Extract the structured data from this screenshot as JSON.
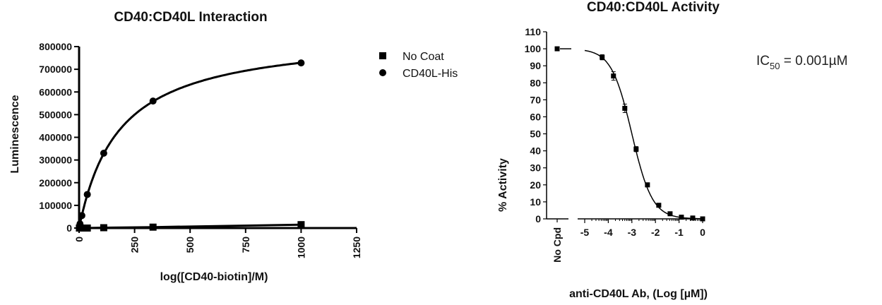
{
  "chart_data": [
    {
      "type": "scatter",
      "title": "CD40:CD40L Interaction",
      "xlabel": "log([CD40-biotin]/M)",
      "ylabel": "Luminescence",
      "xlim": [
        0,
        1250
      ],
      "ylim": [
        0,
        800000
      ],
      "xticks": [
        0,
        250,
        500,
        750,
        1000,
        1250
      ],
      "xtick_labels": [
        "0",
        "250",
        "500",
        "750",
        "1000",
        "1250"
      ],
      "yticks": [
        0,
        100000,
        200000,
        300000,
        400000,
        500000,
        600000,
        700000,
        800000
      ],
      "ytick_labels": [
        "0",
        "100000",
        "200000",
        "300000",
        "400000",
        "500000",
        "600000",
        "700000",
        "800000"
      ],
      "grid": false,
      "legend_position": "right",
      "series": [
        {
          "name": "No Coat",
          "marker": "square",
          "x": [
            1.4,
            4.1,
            12.3,
            37,
            111,
            333,
            1000
          ],
          "y": [
            0,
            0,
            0,
            0,
            1500,
            4000,
            15000
          ]
        },
        {
          "name": "CD40L-His",
          "marker": "circle",
          "x": [
            1.4,
            4.1,
            12.3,
            37,
            111,
            333,
            1000
          ],
          "y": [
            4000,
            18000,
            55000,
            148000,
            330000,
            560000,
            728000
          ],
          "fit": {
            "model": "one-site binding",
            "Bmax": 860000,
            "Kd": 180
          }
        }
      ]
    },
    {
      "type": "scatter",
      "title": "CD40:CD40L Activity",
      "xlabel": "anti-CD40L Ab, (Log [µM])",
      "ylabel": "% Activity",
      "ylim": [
        0,
        110
      ],
      "xlim": [
        -5,
        0
      ],
      "yticks": [
        0,
        10,
        20,
        30,
        40,
        50,
        60,
        70,
        80,
        90,
        100,
        110
      ],
      "ytick_labels": [
        "0",
        "10",
        "20",
        "30",
        "40",
        "50",
        "60",
        "70",
        "80",
        "90",
        "100",
        "110"
      ],
      "xticks": [
        -5,
        -4,
        -3,
        -2,
        -1,
        0
      ],
      "xtick_labels": [
        "-5",
        "-4",
        "-3",
        "-2",
        "-1",
        "0"
      ],
      "control_label": "No Cpd",
      "control_value": 100,
      "grid": false,
      "annotation": {
        "prefix": "IC",
        "subscript": "50",
        "value": " = 0.001",
        "unit": "µM"
      },
      "series": [
        {
          "name": "",
          "marker": "square",
          "x": [
            -4.26,
            -3.78,
            -3.3,
            -2.82,
            -2.34,
            -1.86,
            -1.38,
            -0.9,
            -0.42,
            0
          ],
          "y": [
            95,
            84,
            65,
            41,
            20,
            8,
            3,
            1,
            0.5,
            0
          ],
          "error": [
            1.5,
            2.5,
            2.5,
            1.5,
            1.2,
            1,
            0.8,
            0.5,
            0.5,
            0.5
          ],
          "fit": {
            "model": "sigmoidal dose-response",
            "top": 100,
            "bottom": 0,
            "logIC50": -3,
            "hill": 1
          }
        }
      ]
    }
  ]
}
